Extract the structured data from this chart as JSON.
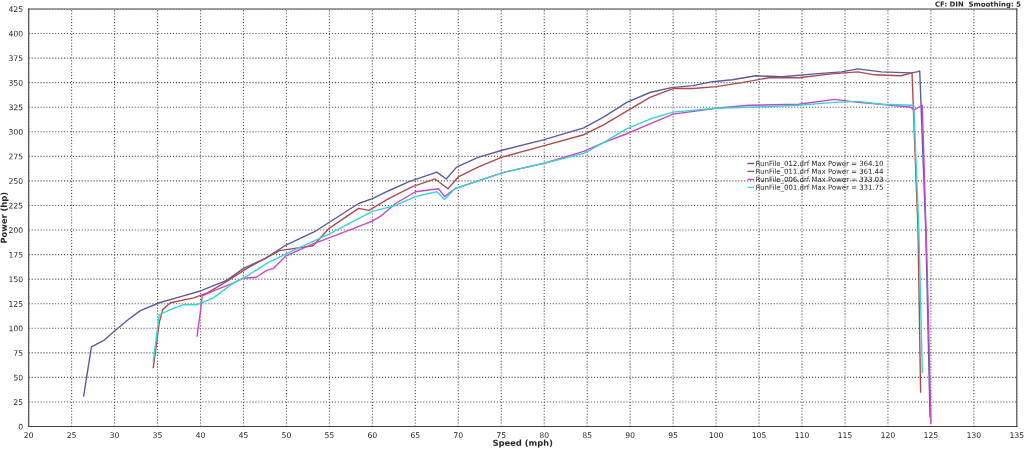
{
  "chart_data": {
    "type": "line",
    "xlabel": "Speed (mph)",
    "ylabel": "Power (hp)",
    "annotations": [
      "CF: DIN  Smoothing: 5"
    ],
    "xlim": [
      20,
      135
    ],
    "xticks": [
      20,
      25,
      30,
      35,
      40,
      45,
      50,
      55,
      60,
      65,
      70,
      75,
      80,
      85,
      90,
      95,
      100,
      105,
      110,
      115,
      120,
      125,
      130,
      135
    ],
    "ylim": [
      0,
      425
    ],
    "yticks": [
      0,
      25,
      50,
      75,
      100,
      125,
      150,
      175,
      200,
      225,
      250,
      275,
      300,
      325,
      350,
      375,
      400,
      425
    ],
    "grid": true,
    "legend": "right",
    "line_style": "solid",
    "marker": "none",
    "series": [
      {
        "name": "RunFile_012.drf Max Power = 364.10",
        "color": "#5a5aa0",
        "x": [
          26.4,
          27.3,
          28.8,
          30.1,
          31.6,
          33.0,
          35.2,
          38.0,
          40.0,
          43.1,
          45.0,
          47.5,
          50.0,
          53.4,
          58.4,
          60.0,
          61.9,
          64.2,
          67.5,
          68.6,
          69.8,
          72.3,
          75.0,
          80.0,
          84.6,
          86.9,
          89.6,
          92.3,
          94.8,
          97.3,
          99.6,
          101.9,
          104.6,
          107.7,
          111.5,
          114.6,
          116.5,
          119.2,
          122.7,
          123.4,
          123.7,
          124.4,
          124.9
        ],
        "values": [
          31,
          81,
          88,
          98,
          109,
          118,
          126,
          133,
          138,
          149,
          161,
          171,
          185,
          199,
          227,
          232,
          240,
          249,
          259,
          252,
          264,
          274,
          281,
          292,
          304,
          315,
          330,
          340,
          345,
          347,
          351,
          353,
          357,
          356,
          359,
          361,
          364,
          361,
          360,
          361,
          362,
          200,
          10
        ]
      },
      {
        "name": "RunFile_011.drf Max Power = 361.44",
        "color": "#b04a4a",
        "x": [
          34.5,
          35.2,
          35.6,
          36.5,
          39.2,
          40.8,
          43.1,
          45.4,
          49.2,
          53.1,
          55.0,
          58.4,
          59.6,
          61.9,
          64.6,
          67.3,
          68.8,
          70.0,
          72.3,
          75.0,
          80.0,
          84.6,
          86.9,
          90.0,
          92.3,
          95.0,
          97.3,
          100.0,
          103.0,
          106.1,
          109.6,
          113.4,
          116.5,
          118.4,
          121.5,
          122.8,
          123.5,
          123.8
        ],
        "values": [
          60,
          106,
          119,
          126,
          131,
          136,
          148,
          161,
          179,
          184,
          202,
          222,
          220,
          232,
          244,
          252,
          242,
          254,
          264,
          274,
          286,
          297,
          307,
          323,
          335,
          344,
          344,
          346,
          350,
          355,
          355,
          359,
          361,
          358,
          357,
          360,
          200,
          35
        ]
      },
      {
        "name": "RunFile_006.drf Max Power = 333.03",
        "color": "#cc44cc",
        "x": [
          39.6,
          40.0,
          40.2,
          41.5,
          43.8,
          45.0,
          46.5,
          47.7,
          48.5,
          50.0,
          53.1,
          57.3,
          60.0,
          61.1,
          62.7,
          65.0,
          67.7,
          68.4,
          69.6,
          72.3,
          75.4,
          80.0,
          84.6,
          86.9,
          89.6,
          92.3,
          95.0,
          100.0,
          103.8,
          109.6,
          113.8,
          116.5,
          119.2,
          122.7,
          123.0,
          124.0,
          124.6,
          125.0
        ],
        "values": [
          92,
          118,
          133,
          138,
          146,
          151,
          152,
          159,
          161,
          174,
          186,
          200,
          209,
          215,
          227,
          239,
          242,
          234,
          242,
          250,
          259,
          268,
          280,
          289,
          298,
          308,
          318,
          324,
          327,
          328,
          333,
          330,
          328,
          325,
          322,
          327,
          150,
          3
        ]
      },
      {
        "name": "RunFile_001.drf Max Power = 331.75",
        "color": "#33d6d6",
        "x": [
          34.5,
          35.2,
          36.5,
          38.0,
          39.6,
          41.5,
          43.8,
          45.2,
          47.7,
          50.0,
          55.0,
          60.0,
          62.7,
          65.0,
          67.5,
          68.4,
          69.6,
          72.3,
          75.4,
          80.0,
          84.6,
          86.9,
          89.6,
          92.3,
          95.0,
          100.0,
          103.8,
          109.6,
          113.8,
          116.5,
          119.2,
          123.0,
          123.6,
          124.0
        ],
        "values": [
          66,
          114,
          119,
          124,
          124,
          131,
          146,
          152,
          166,
          176,
          196,
          219,
          225,
          234,
          239,
          231,
          242,
          250,
          259,
          268,
          278,
          289,
          303,
          313,
          320,
          324,
          325,
          327,
          330,
          331,
          328,
          327,
          200,
          55
        ]
      }
    ]
  }
}
